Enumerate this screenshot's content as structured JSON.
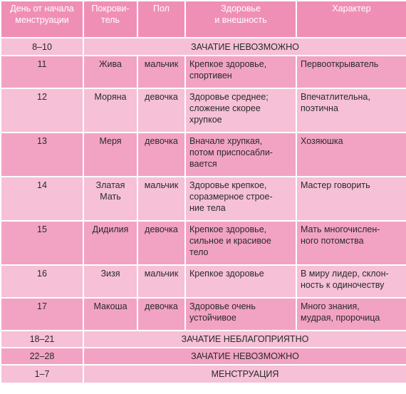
{
  "headers": {
    "day": [
      "День от начала",
      "менструации"
    ],
    "patron": [
      "Покрови-",
      "тель"
    ],
    "sex": [
      "Пол"
    ],
    "health": [
      "Здоровье",
      "и внешность"
    ],
    "character": [
      "Характер"
    ]
  },
  "rows": [
    {
      "day": "8–10",
      "span": "ЗАЧАТИЕ НЕВОЗМОЖНО"
    },
    {
      "day": "11",
      "patron": [
        "Жива"
      ],
      "sex": "мальчик",
      "health": [
        "Крепкое здоровье,",
        "спортивен"
      ],
      "character": [
        "Первооткрыватель"
      ]
    },
    {
      "day": "12",
      "patron": [
        "Моряна"
      ],
      "sex": "девочка",
      "health": [
        "Здоровье среднее;",
        "сложение скорее",
        "хрупкое"
      ],
      "character": [
        "Впечатлительна,",
        "поэтична"
      ]
    },
    {
      "day": "13",
      "patron": [
        "Меря"
      ],
      "sex": "девочка",
      "health": [
        "Вначале хрупкая,",
        "потом приспосабли-",
        "вается"
      ],
      "character": [
        "Хозяюшка"
      ]
    },
    {
      "day": "14",
      "patron": [
        "Златая",
        "Мать"
      ],
      "sex": "мальчик",
      "health": [
        "Здоровье крепкое,",
        "соразмерное стрoе-",
        "ние тела"
      ],
      "character": [
        "Мастер говорить"
      ]
    },
    {
      "day": "15",
      "patron": [
        "Дидилия"
      ],
      "sex": "девочка",
      "health": [
        "Крепкое здоровье,",
        "сильное и красивое",
        "тело"
      ],
      "character": [
        "Мать многочислен-",
        "ного потомства"
      ]
    },
    {
      "day": "16",
      "patron": [
        "Зизя"
      ],
      "sex": "мальчик",
      "health": [
        "Крепкое здоровье"
      ],
      "character": [
        "В миру лидер, склон-",
        "ность к одиночеству"
      ]
    },
    {
      "day": "17",
      "patron": [
        "Макоша"
      ],
      "sex": "девочка",
      "health": [
        "Здоровье очень",
        "устойчивое"
      ],
      "character": [
        "Много знания,",
        "мудрая, пророчица"
      ]
    },
    {
      "day": "18–21",
      "span": "ЗАЧАТИЕ НЕБЛАГОПРИЯТНО"
    },
    {
      "day": "22–28",
      "span": "ЗАЧАТИЕ НЕВОЗМОЖНО"
    },
    {
      "day": "1–7",
      "span": "МЕНСТРУАЦИЯ"
    }
  ],
  "colors": {
    "header": "#f08fb6",
    "light": "#f6c0d6",
    "dark": "#f2a3c4"
  }
}
